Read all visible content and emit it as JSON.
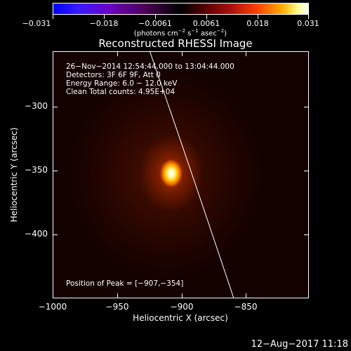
{
  "colorbar": {
    "ticks": [
      "−0.031",
      "−0.018",
      "−0.0061",
      "0.0061",
      "0.018",
      "0.031"
    ]
  },
  "title": "Reconstructed RHESSI Image",
  "annotations": {
    "time_range": "26−Nov−2014 12:54:44.000 to 13:04:44.000",
    "detectors": "Detectors: 3F 6F 9F, Att 0",
    "energy_range": "Energy Range: 6.0 − 12.0 keV",
    "method_counts": "Clean    Total counts: 4.95E+04",
    "peak_position": "Position of Peak = [−907,−354]"
  },
  "axes": {
    "xlabel": "Heliocentric X (arcsec)",
    "ylabel": "Heliocentric Y (arcsec)",
    "xticks": [
      "−1000",
      "−950",
      "−900",
      "−850"
    ],
    "yticks": [
      "−300",
      "−350",
      "−400"
    ]
  },
  "date_stamp": "12−Aug−2017 11:18",
  "colors": {
    "background": "#000000",
    "axes": "#ffffff",
    "peak": "#ffffff"
  }
}
